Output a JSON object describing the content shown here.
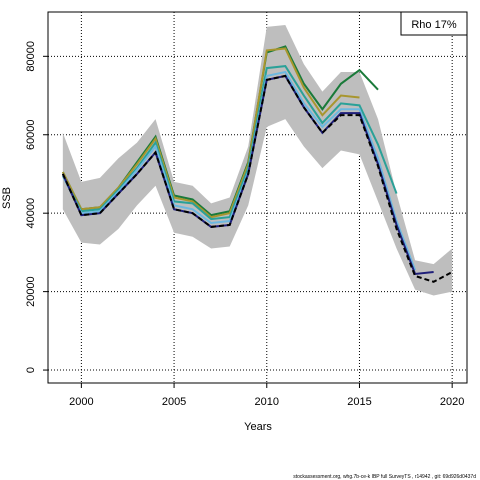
{
  "chart_data": {
    "type": "line",
    "xlabel": "Years",
    "ylabel": "SSB",
    "legend_text": "Rho 17%",
    "legend_position": "top-right",
    "footer": "stockassessment.org, whg.7b-ce-k  IBP  full  SurveyTS , r14942 , git: 69d926d0437d",
    "grid": true,
    "xlim": [
      1998.2,
      2020.8
    ],
    "ylim": [
      -3300,
      91300
    ],
    "xticks": [
      2000,
      2005,
      2010,
      2015,
      2020
    ],
    "yticks": [
      0,
      20000,
      40000,
      60000,
      80000
    ],
    "x": [
      1999,
      2000,
      2001,
      2002,
      2003,
      2004,
      2005,
      2006,
      2007,
      2008,
      2009,
      2010,
      2011,
      2012,
      2013,
      2014,
      2015,
      2016,
      2017,
      2018,
      2019,
      2020
    ],
    "band": {
      "color": "#bebebe",
      "upper": [
        60500,
        48000,
        49000,
        54000,
        58000,
        64000,
        48000,
        47000,
        42500,
        44000,
        57000,
        87500,
        88000,
        78000,
        71000,
        76000,
        76000,
        64000,
        45000,
        28000,
        27000,
        31000
      ],
      "lower": [
        41000,
        32500,
        32000,
        36000,
        42000,
        47000,
        35000,
        34000,
        31000,
        31500,
        42000,
        62000,
        64000,
        57000,
        51500,
        56000,
        55000,
        43000,
        31000,
        20500,
        19000,
        20000
      ]
    },
    "series": [
      {
        "color": "#1a7a3a",
        "values": [
          50500,
          41000,
          41500,
          46500,
          53000,
          59500,
          44500,
          43500,
          39500,
          40500,
          53000,
          81000,
          82500,
          73000,
          66500,
          73000,
          76500,
          71500,
          null,
          null,
          null,
          null
        ]
      },
      {
        "color": "#a8962e",
        "values": [
          50500,
          41000,
          41500,
          46500,
          52500,
          59000,
          44000,
          43000,
          39000,
          40000,
          52500,
          81500,
          82000,
          72000,
          65000,
          70000,
          69500,
          null,
          null,
          null,
          null,
          null
        ]
      },
      {
        "color": "#2aa198",
        "values": [
          49500,
          40500,
          41000,
          46000,
          51500,
          58000,
          43000,
          42500,
          38500,
          39000,
          51500,
          77000,
          77500,
          70000,
          63000,
          68000,
          67500,
          57500,
          45000,
          null,
          null,
          null
        ]
      },
      {
        "color": "#6cb8e0",
        "values": [
          49500,
          40000,
          40500,
          45500,
          51000,
          57000,
          42000,
          41000,
          37500,
          38000,
          50500,
          75000,
          76000,
          68000,
          62000,
          66500,
          66500,
          54000,
          38000,
          25500,
          null,
          null
        ]
      },
      {
        "color": "#1f1f7a",
        "values": [
          50000,
          39500,
          40000,
          45000,
          50000,
          55500,
          41000,
          40000,
          36500,
          37000,
          50000,
          74000,
          75000,
          67000,
          60500,
          65500,
          65500,
          52500,
          37000,
          24500,
          25000,
          null
        ]
      },
      {
        "color": "#000000",
        "style": "dashed",
        "values": [
          50000,
          39500,
          40000,
          45000,
          50000,
          55500,
          41000,
          40000,
          36500,
          37000,
          50000,
          74000,
          75000,
          67000,
          60500,
          65000,
          65000,
          52000,
          36000,
          24000,
          22500,
          25000
        ]
      }
    ]
  }
}
